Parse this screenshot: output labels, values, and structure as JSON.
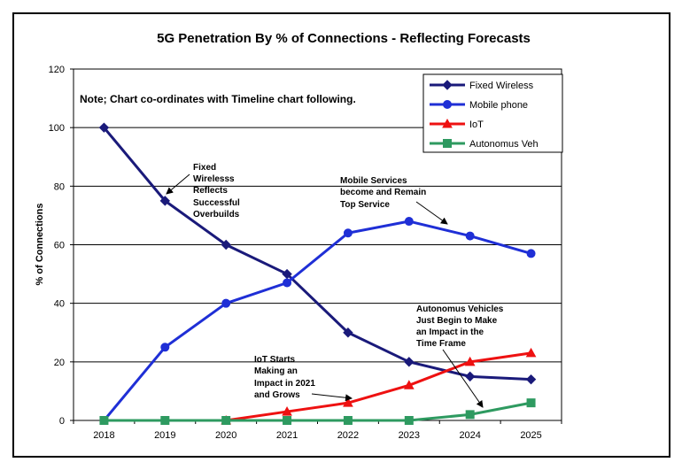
{
  "chart_data": {
    "type": "line",
    "title": "5G Penetration By % of Connections - Reflecting Forecasts",
    "xlabel": "",
    "ylabel": "% of Connections",
    "x": [
      "2018",
      "2019",
      "2020",
      "2021",
      "2022",
      "2023",
      "2024",
      "2025"
    ],
    "ylim": [
      0,
      120
    ],
    "yticks": [
      "0",
      "20",
      "40",
      "60",
      "80",
      "100",
      "120"
    ],
    "grid": "horizontal",
    "legend_position": "top-right",
    "series": [
      {
        "name": "Fixed Wireless",
        "color": "#1a1a7a",
        "marker": "diamond",
        "values": [
          100,
          75,
          60,
          50,
          30,
          20,
          15,
          14
        ]
      },
      {
        "name": "Mobile phone",
        "color": "#1f2fd6",
        "marker": "circle",
        "values": [
          0,
          25,
          40,
          47,
          64,
          68,
          63,
          57
        ]
      },
      {
        "name": "IoT",
        "color": "#ee1111",
        "marker": "triangle",
        "values": [
          null,
          null,
          0,
          3,
          6,
          12,
          20,
          23
        ]
      },
      {
        "name": "Autonomus Veh",
        "color": "#2e9a60",
        "marker": "square",
        "values": [
          0,
          0,
          0,
          0,
          0,
          0,
          2,
          6
        ]
      }
    ],
    "note": "Note; Chart co-ordinates with Timeline chart following.",
    "annotations": [
      {
        "lines": [
          "Fixed",
          "Wirelesss",
          "Reflects",
          "Successful",
          "Overbuilds"
        ]
      },
      {
        "lines": [
          "Mobile Services",
          "become and Remain",
          "Top Service"
        ]
      },
      {
        "lines": [
          "Autonomus Vehicles",
          "Just Begin to Make",
          "an Impact in the",
          "Time Frame"
        ]
      },
      {
        "lines": [
          "IoT Starts",
          "Making an",
          "Impact in 2021",
          "and Grows"
        ]
      }
    ]
  }
}
